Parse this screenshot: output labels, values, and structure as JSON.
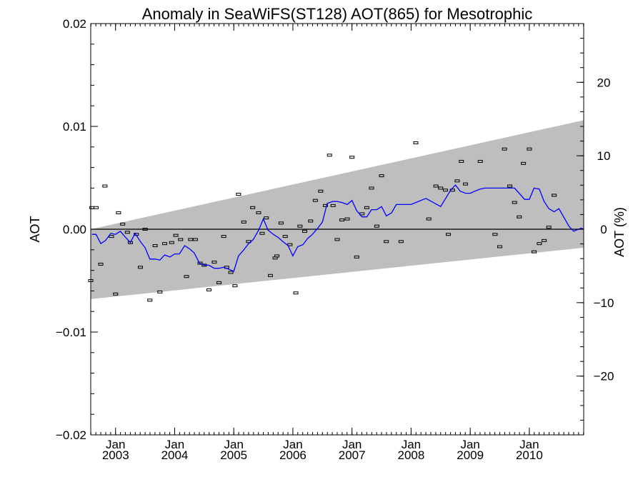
{
  "chart_data": {
    "type": "line",
    "title": "Anomaly in SeaWiFS(ST128) AOT(865) for Mesotrophic",
    "ylabel": "AOT",
    "y2label": "AOT (%)",
    "xlim": [
      2002.58,
      2010.92
    ],
    "ylim": [
      -0.02,
      0.02
    ],
    "y2lim": [
      -28,
      28
    ],
    "yticks": [
      {
        "value": 0.02,
        "label": "0.02"
      },
      {
        "value": 0.01,
        "label": "0.01"
      },
      {
        "value": 0.0,
        "label": "0.00"
      },
      {
        "value": -0.01,
        "label": "−0.01"
      },
      {
        "value": -0.02,
        "label": "−0.02"
      }
    ],
    "y2ticks": [
      {
        "value": 20,
        "label": "20"
      },
      {
        "value": 10,
        "label": "10"
      },
      {
        "value": 0,
        "label": "0"
      },
      {
        "value": -10,
        "label": "−10"
      },
      {
        "value": -20,
        "label": "−20"
      }
    ],
    "xticks": [
      {
        "value": 2003.0,
        "month": "Jan",
        "year": "2003"
      },
      {
        "value": 2004.0,
        "month": "Jan",
        "year": "2004"
      },
      {
        "value": 2005.0,
        "month": "Jan",
        "year": "2005"
      },
      {
        "value": 2006.0,
        "month": "Jan",
        "year": "2006"
      },
      {
        "value": 2007.0,
        "month": "Jan",
        "year": "2007"
      },
      {
        "value": 2008.0,
        "month": "Jan",
        "year": "2008"
      },
      {
        "value": 2009.0,
        "month": "Jan",
        "year": "2009"
      },
      {
        "value": 2010.0,
        "month": "Jan",
        "year": "2010"
      }
    ],
    "band": {
      "start": 2002.58,
      "end": 2010.92,
      "upper": [
        0.0,
        0.0106
      ],
      "lower": [
        -0.0068,
        -0.0018
      ],
      "color": "#bebebe"
    },
    "zero_line": 0.0,
    "series": [
      {
        "color": "#0000ff",
        "x": [
          2002.6,
          2002.67,
          2002.75,
          2002.83,
          2002.92,
          2003.0,
          2003.08,
          2003.17,
          2003.25,
          2003.33,
          2003.42,
          2003.5,
          2003.58,
          2003.67,
          2003.75,
          2003.83,
          2003.92,
          2004.0,
          2004.08,
          2004.17,
          2004.25,
          2004.33,
          2004.42,
          2004.5,
          2004.58,
          2004.67,
          2004.75,
          2004.83,
          2004.92,
          2005.0,
          2005.08,
          2005.17,
          2005.25,
          2005.33,
          2005.42,
          2005.5,
          2005.58,
          2005.67,
          2005.75,
          2005.83,
          2005.92,
          2006.0,
          2006.08,
          2006.17,
          2006.25,
          2006.33,
          2006.42,
          2006.5,
          2006.58,
          2006.67,
          2006.75,
          2006.83,
          2006.92,
          2007.0,
          2007.08,
          2007.17,
          2007.25,
          2007.33,
          2007.42,
          2007.5,
          2007.58,
          2007.67,
          2007.75,
          2007.83,
          2007.92,
          2008.0,
          2008.25,
          2008.5,
          2008.67,
          2008.75,
          2008.83,
          2008.92,
          2009.0,
          2009.08,
          2009.17,
          2009.25,
          2009.5,
          2009.75,
          2009.92,
          2010.0,
          2010.08,
          2010.17,
          2010.25,
          2010.33,
          2010.42,
          2010.5,
          2010.58,
          2010.67,
          2010.75,
          2010.83,
          2010.88,
          2010.92
        ],
        "y": [
          -0.0005,
          -0.0005,
          -0.0014,
          -0.0011,
          -0.0004,
          -0.0005,
          -0.0002,
          -0.0008,
          -0.0013,
          -0.0004,
          -0.0012,
          -0.0018,
          -0.0029,
          -0.0029,
          -0.003,
          -0.0025,
          -0.0027,
          -0.0024,
          -0.0024,
          -0.0016,
          -0.0019,
          -0.0023,
          -0.0033,
          -0.0035,
          -0.0035,
          -0.0038,
          -0.0038,
          -0.0037,
          -0.0039,
          -0.0041,
          -0.0026,
          -0.002,
          -0.0014,
          -0.001,
          -0.0001,
          0.001,
          -0.0001,
          -0.0005,
          -0.0008,
          -0.0012,
          -0.0016,
          -0.0026,
          -0.0017,
          -0.0015,
          -0.0009,
          -0.0005,
          0.0001,
          0.0007,
          0.0025,
          0.0027,
          0.0027,
          0.0026,
          0.0024,
          0.0028,
          0.0018,
          0.0012,
          0.0012,
          0.0019,
          0.0019,
          0.0022,
          0.0013,
          0.0016,
          0.0024,
          0.0024,
          0.0024,
          0.0024,
          0.003,
          0.0022,
          0.0038,
          0.0043,
          0.0037,
          0.0035,
          0.0035,
          0.0037,
          0.0039,
          0.004,
          0.004,
          0.004,
          0.0029,
          0.0029,
          0.004,
          0.0039,
          0.0027,
          0.002,
          0.0017,
          0.002,
          0.0012,
          0.0003,
          -0.0002,
          0.0,
          0.0001,
          0.0
        ]
      }
    ],
    "markers": {
      "style": "error-bar",
      "points": [
        [
          2002.58,
          -0.005
        ],
        [
          2002.6,
          0.0021
        ],
        [
          2002.67,
          0.0021
        ],
        [
          2002.75,
          -0.0034
        ],
        [
          2002.82,
          0.0042
        ],
        [
          2002.93,
          -0.0007
        ],
        [
          2003.0,
          -0.0063
        ],
        [
          2003.05,
          0.0016
        ],
        [
          2003.12,
          0.0005
        ],
        [
          2003.2,
          -0.0003
        ],
        [
          2003.25,
          -0.0013
        ],
        [
          2003.35,
          -0.0005
        ],
        [
          2003.42,
          -0.0037
        ],
        [
          2003.5,
          0.0
        ],
        [
          2003.58,
          -0.0069
        ],
        [
          2003.67,
          -0.0016
        ],
        [
          2003.75,
          -0.0061
        ],
        [
          2003.83,
          -0.0014
        ],
        [
          2003.95,
          -0.0013
        ],
        [
          2004.02,
          -0.0006
        ],
        [
          2004.1,
          -0.001
        ],
        [
          2004.2,
          -0.0046
        ],
        [
          2004.27,
          -0.001
        ],
        [
          2004.35,
          -0.001
        ],
        [
          2004.43,
          -0.0033
        ],
        [
          2004.5,
          -0.0035
        ],
        [
          2004.58,
          -0.0059
        ],
        [
          2004.67,
          -0.0032
        ],
        [
          2004.75,
          -0.0052
        ],
        [
          2004.83,
          -0.0007
        ],
        [
          2004.88,
          -0.0037
        ],
        [
          2004.95,
          -0.0042
        ],
        [
          2005.02,
          -0.0055
        ],
        [
          2005.08,
          0.0034
        ],
        [
          2005.17,
          0.0007
        ],
        [
          2005.25,
          -0.0012
        ],
        [
          2005.32,
          0.0021
        ],
        [
          2005.42,
          0.0016
        ],
        [
          2005.48,
          -0.0004
        ],
        [
          2005.55,
          0.0011
        ],
        [
          2005.62,
          -0.0045
        ],
        [
          2005.7,
          -0.0028
        ],
        [
          2005.73,
          -0.0026
        ],
        [
          2005.8,
          0.0006
        ],
        [
          2005.87,
          -0.0007
        ],
        [
          2005.95,
          -0.0015
        ],
        [
          2006.05,
          -0.0062
        ],
        [
          2006.12,
          0.0003
        ],
        [
          2006.2,
          -0.0002
        ],
        [
          2006.3,
          0.0008
        ],
        [
          2006.38,
          0.0028
        ],
        [
          2006.47,
          0.0037
        ],
        [
          2006.55,
          0.0023
        ],
        [
          2006.62,
          0.0072
        ],
        [
          2006.68,
          0.0023
        ],
        [
          2006.75,
          -0.001
        ],
        [
          2006.83,
          0.0009
        ],
        [
          2006.92,
          0.001
        ],
        [
          2007.0,
          0.007
        ],
        [
          2007.08,
          -0.0027
        ],
        [
          2007.17,
          0.0015
        ],
        [
          2007.25,
          0.0021
        ],
        [
          2007.33,
          0.004
        ],
        [
          2007.42,
          0.0003
        ],
        [
          2007.5,
          0.0052
        ],
        [
          2007.58,
          -0.0012
        ],
        [
          2007.83,
          -0.0012
        ],
        [
          2008.08,
          0.0084
        ],
        [
          2008.3,
          0.001
        ],
        [
          2008.42,
          0.0042
        ],
        [
          2008.5,
          0.004
        ],
        [
          2008.58,
          0.0038
        ],
        [
          2008.63,
          -0.0005
        ],
        [
          2008.7,
          0.0038
        ],
        [
          2008.78,
          0.0047
        ],
        [
          2008.85,
          0.0066
        ],
        [
          2008.92,
          0.0044
        ],
        [
          2009.17,
          0.0066
        ],
        [
          2009.42,
          -0.0005
        ],
        [
          2009.5,
          -0.0017
        ],
        [
          2009.58,
          0.0078
        ],
        [
          2009.67,
          0.0042
        ],
        [
          2009.75,
          0.0026
        ],
        [
          2009.83,
          0.0012
        ],
        [
          2009.9,
          0.0064
        ],
        [
          2010.0,
          0.0078
        ],
        [
          2010.08,
          -0.0022
        ],
        [
          2010.17,
          -0.0014
        ],
        [
          2010.25,
          -0.0011
        ],
        [
          2010.33,
          0.0002
        ],
        [
          2010.42,
          0.0033
        ]
      ]
    }
  }
}
